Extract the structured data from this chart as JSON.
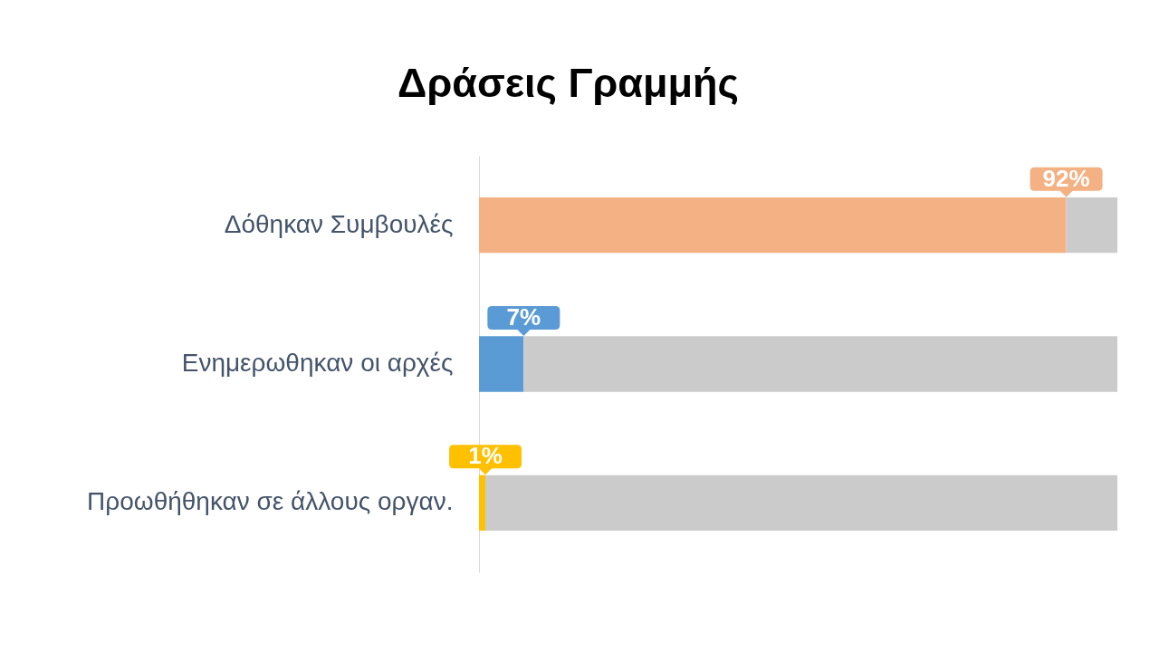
{
  "chart_data": {
    "type": "bar",
    "orientation": "horizontal",
    "stacked": true,
    "title": "Δράσεις Γραμμής",
    "categories": [
      "Δόθηκαν Συμβουλές",
      "Ενημερωθηκαν οι αρχές",
      "Προωθήθηκαν σε άλλους οργαν."
    ],
    "series": [
      {
        "colors": [
          "#f4b183",
          "#5b9bd5",
          "#ffc000"
        ],
        "values": [
          92,
          7,
          1
        ],
        "value_labels": [
          "92%",
          "7%",
          "1%"
        ]
      },
      {
        "color": "#cbcbcb",
        "values": [
          8,
          93,
          99
        ]
      }
    ],
    "xlim": [
      0,
      100
    ],
    "tick_labels": "y"
  }
}
